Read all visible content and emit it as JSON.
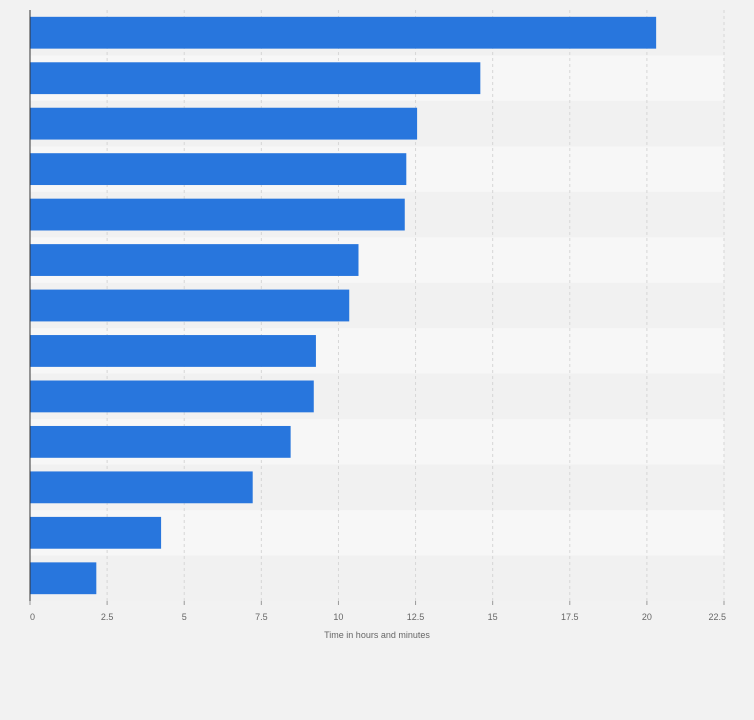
{
  "chart_data": {
    "type": "bar",
    "orientation": "horizontal",
    "categories": [
      "",
      "",
      "",
      "",
      "",
      "",
      "",
      "",
      "",
      "",
      "",
      "",
      ""
    ],
    "values": [
      20.3,
      14.6,
      12.55,
      12.2,
      12.15,
      10.65,
      10.35,
      9.27,
      9.2,
      8.45,
      7.22,
      4.25,
      2.15
    ],
    "xlabel": "Time in hours and minutes",
    "ylabel": "",
    "xlim": [
      0,
      22.5
    ],
    "xticks": [
      0,
      2.5,
      5,
      7.5,
      10,
      12.5,
      15,
      17.5,
      20,
      22.5
    ],
    "xtick_labels": [
      "0",
      "2.5",
      "5",
      "7.5",
      "10",
      "12.5",
      "15",
      "17.5",
      "20",
      "22.5"
    ],
    "grid": true,
    "legend": "none",
    "colors": {
      "bar": "#2876dd",
      "background": "#f2f2f2",
      "band_light": "#f7f7f7",
      "band_dark": "#f1f1f1",
      "grid": "#d6d6d6",
      "axis": "#333333",
      "text": "#666666"
    }
  }
}
